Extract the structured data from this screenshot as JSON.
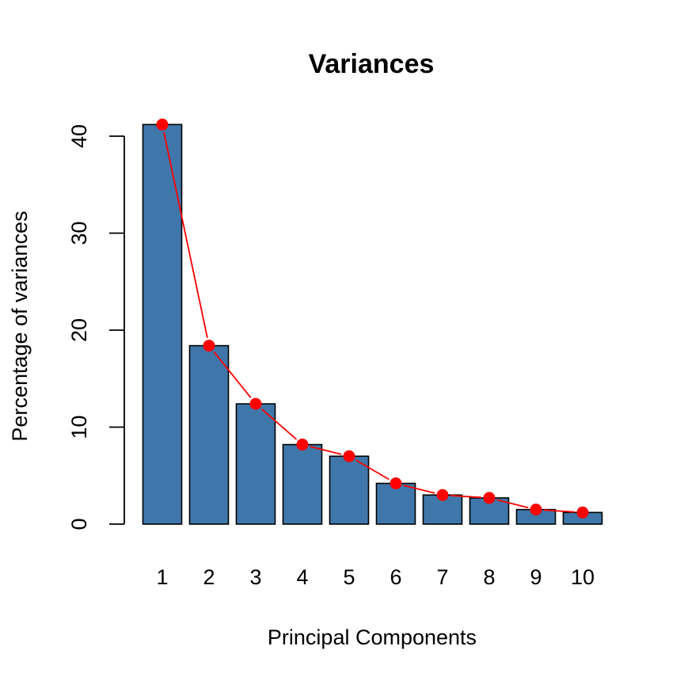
{
  "chart_data": {
    "type": "bar",
    "title": "Variances",
    "xlabel": "Principal Components",
    "ylabel": "Percentage of variances",
    "categories": [
      "1",
      "2",
      "3",
      "4",
      "5",
      "6",
      "7",
      "8",
      "9",
      "10"
    ],
    "series": [
      {
        "type": "bar",
        "values": [
          41.2,
          18.4,
          12.4,
          8.2,
          7.0,
          4.2,
          3.0,
          2.7,
          1.5,
          1.2
        ]
      },
      {
        "type": "line",
        "values": [
          41.2,
          18.4,
          12.4,
          8.2,
          7.0,
          4.2,
          3.0,
          2.7,
          1.5,
          1.2
        ]
      }
    ],
    "yticks": [
      0,
      10,
      20,
      30,
      40
    ],
    "ylim": [
      0,
      41.2
    ],
    "grid": false,
    "legend": "none",
    "colors": {
      "bar_fill": "#4077AA",
      "bar_border": "#000000",
      "line": "#FF0000",
      "point": "#FF0000"
    }
  }
}
